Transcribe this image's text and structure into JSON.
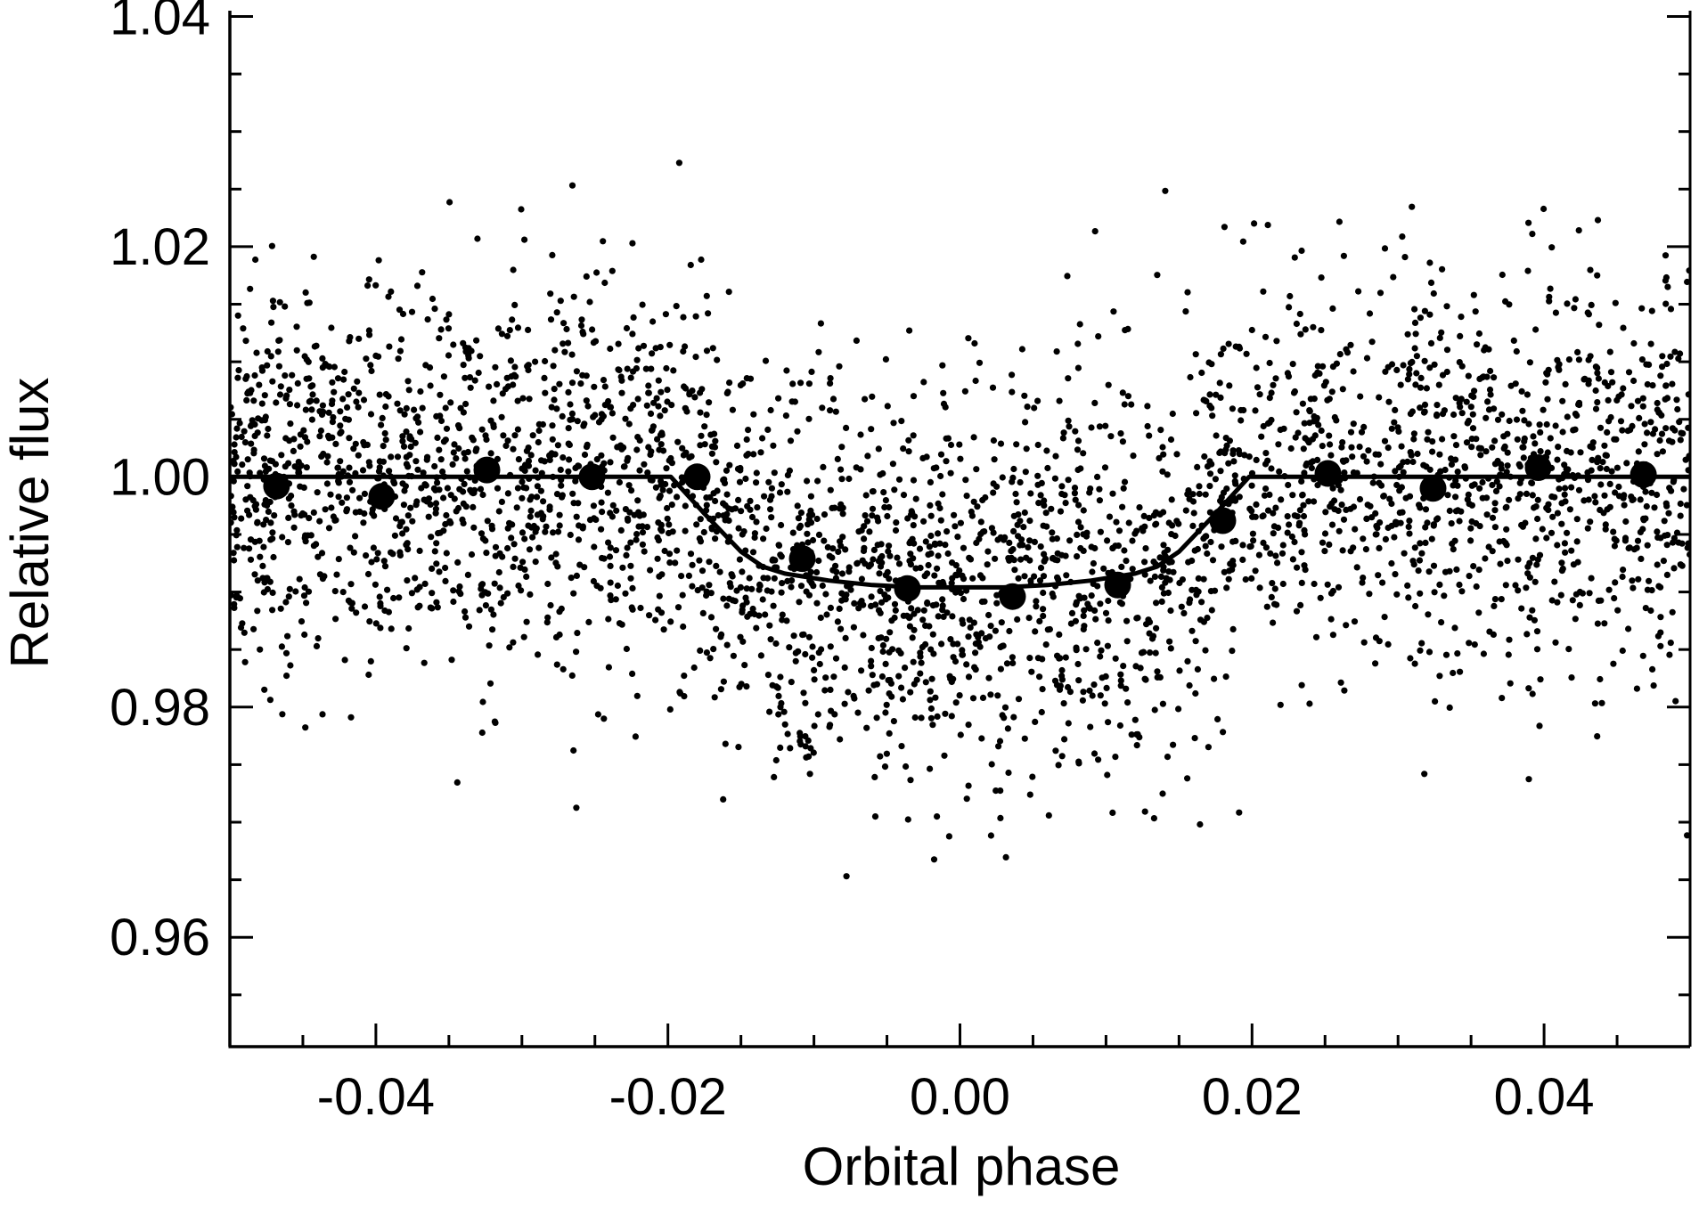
{
  "chart_data": {
    "type": "scatter",
    "title": "",
    "xlabel": "Orbital phase",
    "ylabel": "Relative flux",
    "xlim": [
      -0.05,
      0.05
    ],
    "ylim": [
      0.9505,
      1.0405
    ],
    "x_ticks": [
      -0.04,
      -0.02,
      0.0,
      0.02,
      0.04
    ],
    "x_tick_labels": [
      "-0.04",
      "-0.02",
      "0.00",
      "0.02",
      "0.04"
    ],
    "y_ticks": [
      0.96,
      0.98,
      1.0,
      1.02,
      1.04
    ],
    "y_tick_labels": [
      "0.96",
      "0.98",
      "1.00",
      "1.02",
      "1.04"
    ],
    "grid": false,
    "legend": "none",
    "colors": {
      "points": "#000000",
      "model": "#000000",
      "axes": "#000000",
      "background": "#ffffff"
    },
    "series": [
      {
        "kind": "binned",
        "x": [
          -0.0468,
          -0.0396,
          -0.0324,
          -0.0252,
          -0.018,
          -0.0108,
          -0.0036,
          0.0036,
          0.0108,
          0.018,
          0.0252,
          0.0324,
          0.0396,
          0.0468
        ],
        "y": [
          0.9992,
          0.9983,
          1.0006,
          1.0,
          1.0,
          0.9929,
          0.9903,
          0.9896,
          0.9906,
          0.9962,
          1.0003,
          0.999,
          1.0008,
          1.0002
        ]
      },
      {
        "kind": "model",
        "x": [
          -0.05,
          -0.0198,
          -0.0175,
          -0.015,
          -0.0135,
          -0.012,
          -0.009,
          -0.006,
          -0.003,
          0.0,
          0.003,
          0.006,
          0.009,
          0.012,
          0.0135,
          0.015,
          0.0175,
          0.0198,
          0.05
        ],
        "y": [
          1.0,
          1.0,
          0.9968,
          0.9935,
          0.9922,
          0.9916,
          0.991,
          0.9906,
          0.9904,
          0.9904,
          0.9904,
          0.9906,
          0.991,
          0.9916,
          0.9922,
          0.9935,
          0.9968,
          1.0,
          1.0
        ]
      },
      {
        "kind": "raw",
        "count": 3600,
        "noise_sigma": 0.0085,
        "out_of_transit_flux": 1.0,
        "transit_depth": 0.0096
      }
    ]
  }
}
